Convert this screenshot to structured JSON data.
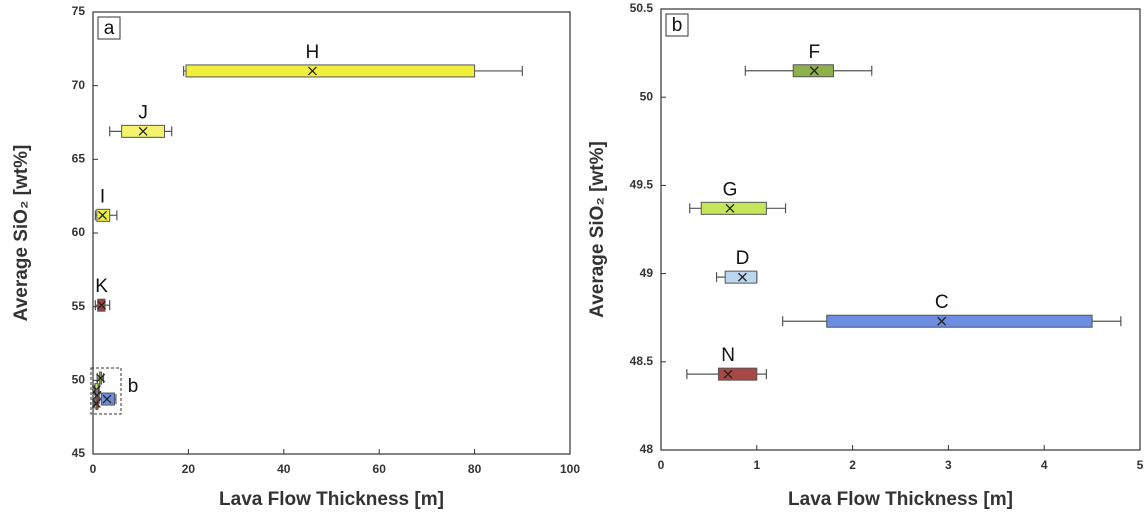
{
  "chart_data": [
    {
      "type": "boxplot",
      "panel_label": "a",
      "xlabel": "Lava Flow Thickness [m]",
      "ylabel": "Average SiO₂ [wt%]",
      "xlim": [
        0,
        100
      ],
      "xticks": [
        0,
        20,
        40,
        60,
        80,
        100
      ],
      "ylim": [
        45,
        75
      ],
      "yticks": [
        45,
        50,
        55,
        60,
        65,
        70,
        75
      ],
      "annotation": "b",
      "series": [
        {
          "name": "H",
          "color": "#f0f03c",
          "y": 71,
          "min": 19,
          "q1": 19.5,
          "mean": 46,
          "q3": 80,
          "max": 90
        },
        {
          "name": "J",
          "color": "#f3f36e",
          "y": 66.9,
          "min": 3.5,
          "q1": 6,
          "mean": 10.5,
          "q3": 15,
          "max": 16.5
        },
        {
          "name": "I",
          "color": "#f0f03c",
          "y": 61.2,
          "min": 0.5,
          "q1": 0.8,
          "mean": 2,
          "q3": 3.5,
          "max": 5
        },
        {
          "name": "K",
          "color": "#a0413e",
          "y": 55.1,
          "min": 0.5,
          "q1": 1,
          "mean": 1.8,
          "q3": 2.5,
          "max": 3.5
        },
        {
          "color": "#8db04a",
          "y": 50.15,
          "min": 0.88,
          "q1": 1.38,
          "mean": 1.6,
          "q3": 1.8,
          "max": 2.2
        },
        {
          "color": "#c5e65a",
          "y": 49.37,
          "min": 0.3,
          "q1": 0.42,
          "mean": 0.72,
          "q3": 1.1,
          "max": 1.3
        },
        {
          "color": "#bcd6f0",
          "y": 48.98,
          "min": 0.58,
          "q1": 0.67,
          "mean": 0.85,
          "q3": 1.0,
          "max": 1.0
        },
        {
          "color": "#6d8ee0",
          "y": 48.73,
          "min": 1.27,
          "q1": 1.73,
          "mean": 2.93,
          "q3": 4.5,
          "max": 4.8
        },
        {
          "color": "#a84844",
          "y": 48.43,
          "min": 0.27,
          "q1": 0.6,
          "mean": 0.7,
          "q3": 1.0,
          "max": 1.1
        }
      ]
    },
    {
      "type": "boxplot",
      "panel_label": "b",
      "xlabel": "Lava Flow Thickness [m]",
      "ylabel": "Average SiO₂ [wt%]",
      "xlim": [
        0,
        5
      ],
      "xticks": [
        0,
        1,
        2,
        3,
        4,
        5
      ],
      "ylim": [
        48,
        50.5
      ],
      "yticks": [
        48,
        48.5,
        49,
        49.5,
        50,
        50.5
      ],
      "series": [
        {
          "name": "F",
          "color": "#8db04a",
          "y": 50.15,
          "min": 0.88,
          "q1": 1.38,
          "mean": 1.6,
          "q3": 1.8,
          "max": 2.2
        },
        {
          "name": "G",
          "color": "#c5e65a",
          "y": 49.37,
          "min": 0.3,
          "q1": 0.42,
          "mean": 0.72,
          "q3": 1.1,
          "max": 1.3
        },
        {
          "name": "D",
          "color": "#bcd6f0",
          "y": 48.98,
          "min": 0.58,
          "q1": 0.67,
          "mean": 0.85,
          "q3": 1.0,
          "max": 1.0
        },
        {
          "name": "C",
          "color": "#6d8ee0",
          "y": 48.73,
          "min": 1.27,
          "q1": 1.73,
          "mean": 2.93,
          "q3": 4.5,
          "max": 4.8
        },
        {
          "name": "N",
          "color": "#a84844",
          "y": 48.43,
          "min": 0.27,
          "q1": 0.6,
          "mean": 0.7,
          "q3": 1.0,
          "max": 1.1
        }
      ]
    }
  ]
}
